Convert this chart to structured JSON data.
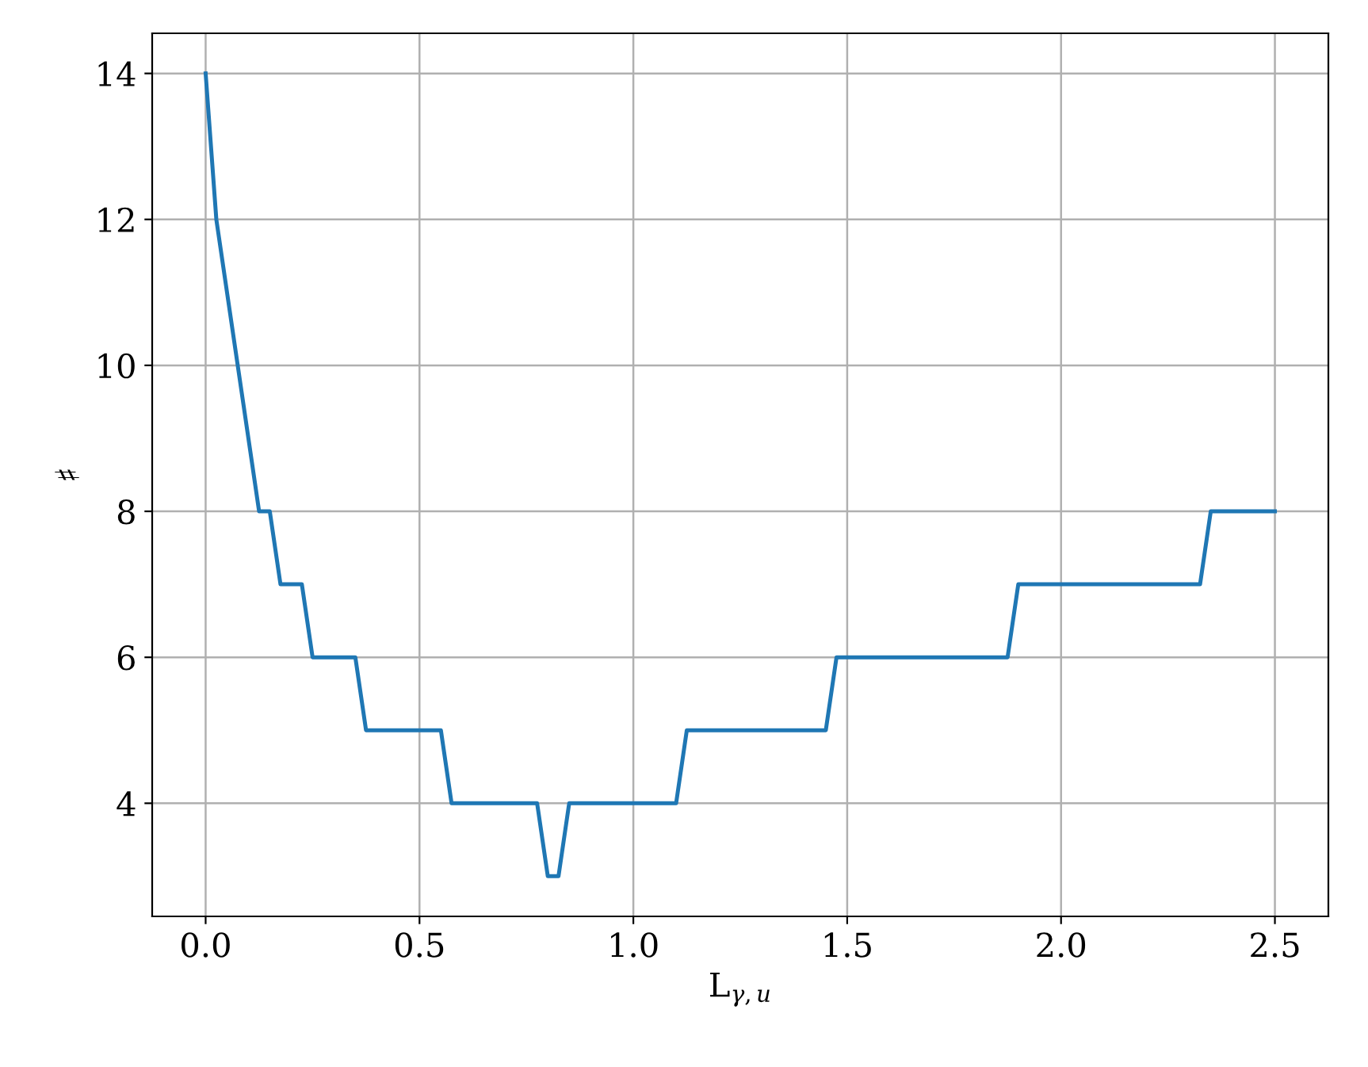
{
  "chart_data": {
    "type": "line",
    "xlabel": "L$_{γ,u}$",
    "ylabel": "♯",
    "x": [
      0,
      0.025,
      0.125,
      0.15,
      0.175,
      0.225,
      0.25,
      0.35,
      0.375,
      0.55,
      0.575,
      0.775,
      0.8,
      0.825,
      0.85,
      1.1,
      1.125,
      1.45,
      1.475,
      1.875,
      1.9,
      2.325,
      2.35,
      2.5
    ],
    "series": [
      {
        "color": "#1f77b4",
        "values": [
          14,
          12,
          8,
          8,
          7,
          7,
          6,
          6,
          5,
          5,
          4,
          4,
          3,
          3,
          4,
          4,
          5,
          5,
          6,
          6,
          7,
          7,
          8,
          8
        ]
      }
    ],
    "xlim": [
      -0.125,
      2.625
    ],
    "ylim": [
      2.45,
      14.55
    ],
    "xticks": [
      {
        "value": 0,
        "label": "0.0"
      },
      {
        "value": 0.5,
        "label": "0.5"
      },
      {
        "value": 1,
        "label": "1.0"
      },
      {
        "value": 1.5,
        "label": "1.5"
      },
      {
        "value": 2,
        "label": "2.0"
      },
      {
        "value": 2.5,
        "label": "2.5"
      }
    ],
    "yticks": [
      4,
      6,
      8,
      10,
      12,
      14
    ],
    "grid": true,
    "legend": false,
    "marker": "none",
    "line_style": "solid"
  }
}
